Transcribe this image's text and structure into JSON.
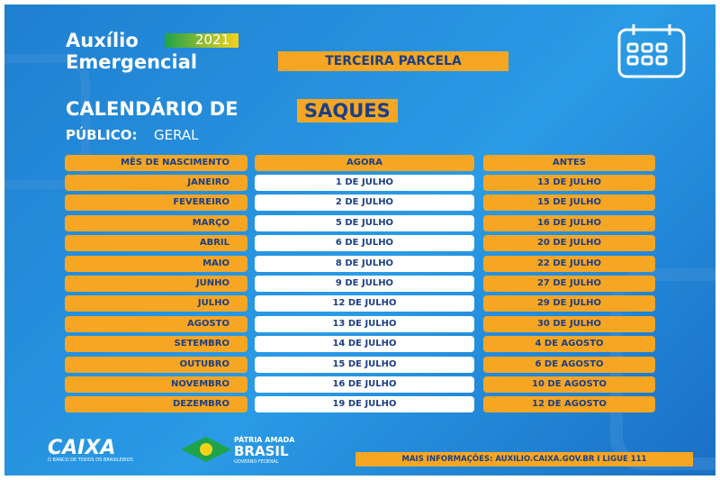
{
  "header": {
    "title_line1": "Auxílio",
    "title_line2": "Emergencial",
    "year": "2021",
    "badge": "TERCEIRA PARCELA",
    "heading": "CALENDÁRIO DE",
    "heading_highlight": "SAQUES",
    "audience_label": "PÚBLICO:",
    "audience": "GERAL"
  },
  "table": {
    "columns": [
      "MÊS DE NASCIMENTO",
      "AGORA",
      "ANTES"
    ],
    "rows": [
      [
        "JANEIRO",
        "1 DE JULHO",
        "13 DE JULHO"
      ],
      [
        "FEVEREIRO",
        "2 DE JULHO",
        "15 DE JULHO"
      ],
      [
        "MARÇO",
        "5 DE JULHO",
        "16 DE JULHO"
      ],
      [
        "ABRIL",
        "6 DE JULHO",
        "20 DE JULHO"
      ],
      [
        "MAIO",
        "8 DE JULHO",
        "22 DE JULHO"
      ],
      [
        "JUNHO",
        "9 DE JULHO",
        "27 DE JULHO"
      ],
      [
        "JULHO",
        "12 DE JULHO",
        "29 DE JULHO"
      ],
      [
        "AGOSTO",
        "13 DE JULHO",
        "30 DE JULHO"
      ],
      [
        "SETEMBRO",
        "14 DE JULHO",
        "4 DE AGOSTO"
      ],
      [
        "OUTUBRO",
        "15 DE JULHO",
        "6 DE AGOSTO"
      ],
      [
        "NOVEMBRO",
        "16 DE JULHO",
        "10 DE AGOSTO"
      ],
      [
        "DEZEMBRO",
        "19 DE JULHO",
        "12 DE AGOSTO"
      ]
    ]
  },
  "footer": {
    "caixa": "CAIXA",
    "caixa_tagline": "O BANCO DE TODOS OS BRASILEIROS",
    "gov_line1": "PÁTRIA AMADA",
    "gov_line2": "BRASIL",
    "gov_line3": "GOVERNO FEDERAL",
    "info": "MAIS INFORMAÇÕES: AUXILIO.CAIXA.GOV.BR I LIGUE 111"
  }
}
